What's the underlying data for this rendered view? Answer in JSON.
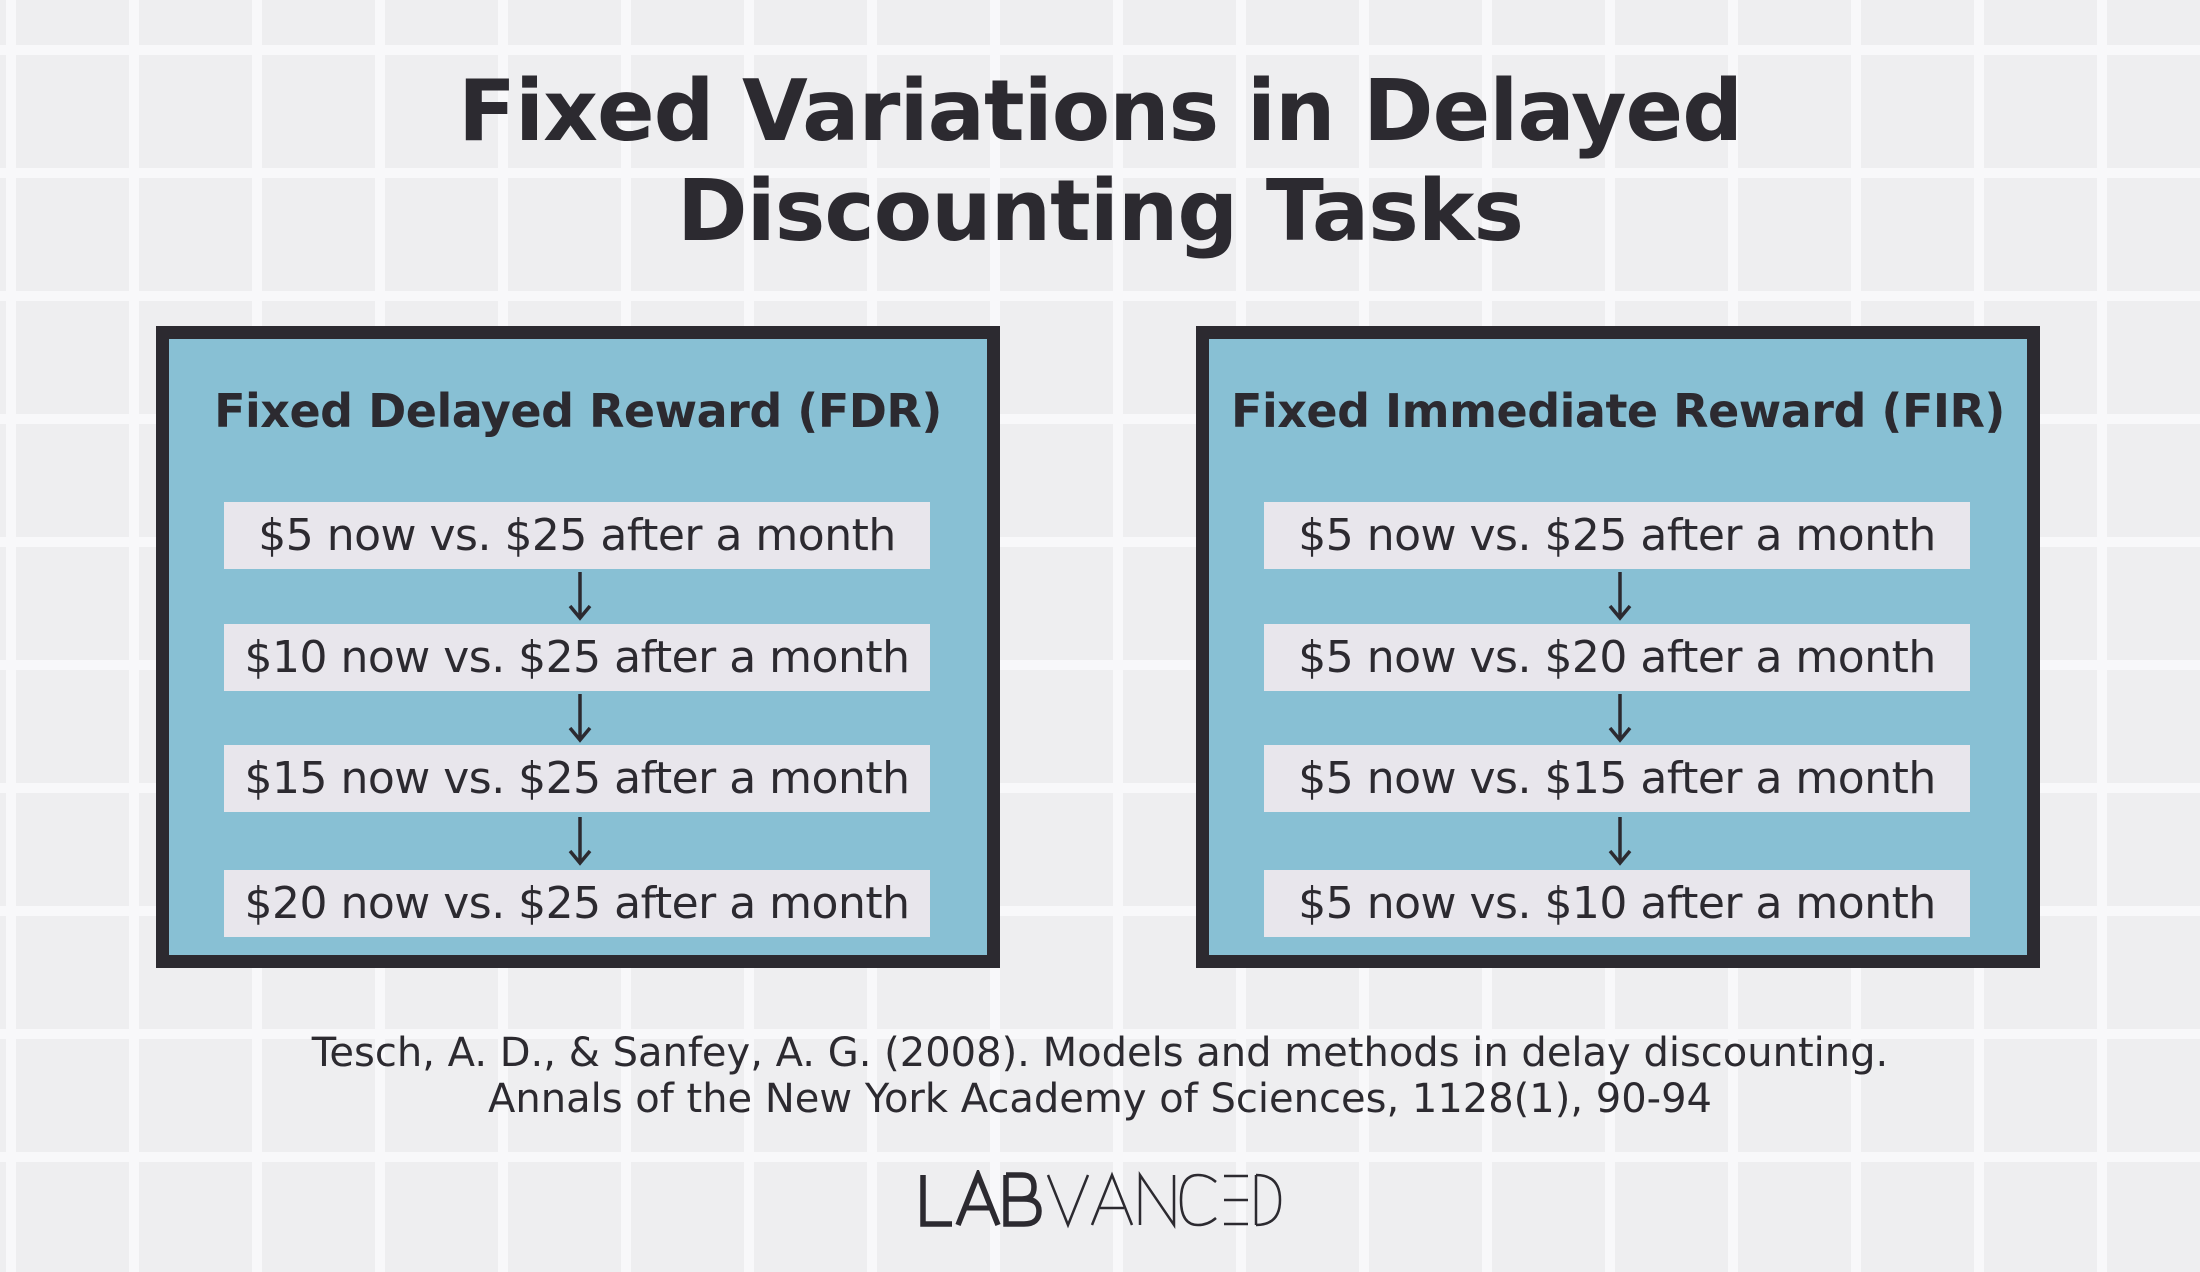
{
  "title": {
    "line1": "Fixed Variations in Delayed",
    "line2": "Discounting Tasks"
  },
  "panels": [
    {
      "heading": "Fixed Delayed Reward (FDR)",
      "options": [
        "$5 now vs. $25 after a month",
        "$10 now vs. $25 after a month",
        "$15 now vs. $25 after a month",
        "$20 now vs. $25 after a month"
      ]
    },
    {
      "heading": "Fixed Immediate Reward (FIR)",
      "options": [
        "$5 now vs. $25 after a month",
        "$5 now vs. $20 after a month",
        "$5 now vs. $15 after a month",
        "$5 now vs. $10 after a month"
      ]
    }
  ],
  "arrow_icon": "down-arrow-icon",
  "citation": {
    "line1": "Tesch, A. D., & Sanfey, A. G. (2008). Models and methods in delay discounting.",
    "line2": "Annals of the New York Academy of Sciences, 1128(1), 90-94"
  },
  "logo": {
    "text": "LABVANCED"
  },
  "colors": {
    "background": "#eeeef0",
    "grid_lines": "#f8f8fa",
    "panel_fill": "#88c0d4",
    "panel_border": "#2c2a30",
    "option_fill": "#e8e6ec",
    "text": "#2c2a30"
  }
}
